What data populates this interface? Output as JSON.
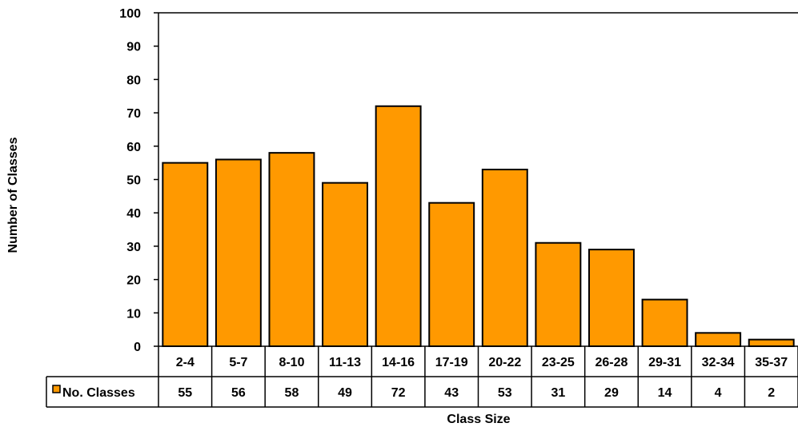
{
  "chart_data": {
    "type": "bar",
    "title": "",
    "xlabel": "Class Size",
    "ylabel": "Number of Classes",
    "ylim": [
      0,
      100
    ],
    "yticks": [
      0,
      10,
      20,
      30,
      40,
      50,
      60,
      70,
      80,
      90,
      100
    ],
    "grid": false,
    "legend": "left of data table",
    "categories": [
      "2-4",
      "5-7",
      "8-10",
      "11-13",
      "14-16",
      "17-19",
      "20-22",
      "23-25",
      "26-28",
      "29-31",
      "32-34",
      "35-37"
    ],
    "series": [
      {
        "name": "No. Classes",
        "values": [
          55,
          56,
          58,
          49,
          72,
          43,
          53,
          31,
          29,
          14,
          4,
          2
        ],
        "color": "#FF9900"
      }
    ],
    "data_table": true
  }
}
